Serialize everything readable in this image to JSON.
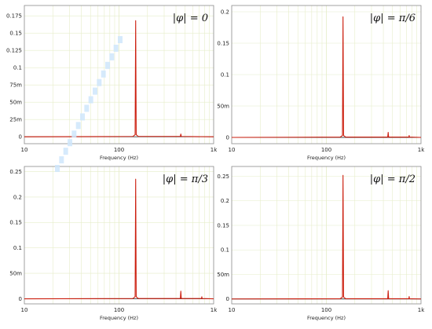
{
  "chart_data": [
    {
      "type": "line",
      "panel": "top-left",
      "annotation": "|φ| = 0",
      "xlabel": "Frequency (Hz)",
      "ylabel": "",
      "xscale": "log",
      "xlim": [
        10,
        1000
      ],
      "ylim": [
        -0.01,
        0.19
      ],
      "grid": true,
      "x_ticks": [
        {
          "value": 10,
          "label": "10"
        },
        {
          "value": 100,
          "label": "100"
        },
        {
          "value": 1000,
          "label": "1k"
        }
      ],
      "y_ticks": [
        {
          "value": 0,
          "label": "0"
        },
        {
          "value": 0.025,
          "label": "25m"
        },
        {
          "value": 0.05,
          "label": "50m"
        },
        {
          "value": 0.075,
          "label": "75m"
        },
        {
          "value": 0.1,
          "label": "0.1"
        },
        {
          "value": 0.125,
          "label": "0.125"
        },
        {
          "value": 0.15,
          "label": "0.15"
        },
        {
          "value": 0.175,
          "label": "0.175"
        }
      ],
      "series": [
        {
          "color": "#cc1f0f",
          "points": [
            {
              "x": 10,
              "y": 0.0
            },
            {
              "x": 140,
              "y": 0.0005
            },
            {
              "x": 148,
              "y": 0.003
            },
            {
              "x": 150,
              "y": 0.168
            },
            {
              "x": 152,
              "y": 0.003
            },
            {
              "x": 160,
              "y": 0.0005
            },
            {
              "x": 445,
              "y": 0.0005
            },
            {
              "x": 450,
              "y": 0.004
            },
            {
              "x": 455,
              "y": 0.0005
            },
            {
              "x": 1000,
              "y": 0.0
            }
          ]
        }
      ]
    },
    {
      "type": "line",
      "panel": "top-right",
      "annotation": "|φ| = π/6",
      "xlabel": "Frequency (Hz)",
      "ylabel": "",
      "xscale": "log",
      "xlim": [
        10,
        1000
      ],
      "ylim": [
        -0.01,
        0.21
      ],
      "grid": true,
      "x_ticks": [
        {
          "value": 10,
          "label": "10"
        },
        {
          "value": 100,
          "label": "100"
        },
        {
          "value": 1000,
          "label": "1k"
        }
      ],
      "y_ticks": [
        {
          "value": 0,
          "label": "0"
        },
        {
          "value": 0.05,
          "label": "50m"
        },
        {
          "value": 0.1,
          "label": "0.1"
        },
        {
          "value": 0.15,
          "label": "0.15"
        },
        {
          "value": 0.2,
          "label": "0.2"
        }
      ],
      "series": [
        {
          "color": "#cc1f0f",
          "points": [
            {
              "x": 10,
              "y": 0.0
            },
            {
              "x": 140,
              "y": 0.0005
            },
            {
              "x": 148,
              "y": 0.003
            },
            {
              "x": 150,
              "y": 0.192
            },
            {
              "x": 152,
              "y": 0.003
            },
            {
              "x": 160,
              "y": 0.0005
            },
            {
              "x": 445,
              "y": 0.0005
            },
            {
              "x": 450,
              "y": 0.008
            },
            {
              "x": 455,
              "y": 0.0005
            },
            {
              "x": 745,
              "y": 0.0005
            },
            {
              "x": 750,
              "y": 0.003
            },
            {
              "x": 755,
              "y": 0.0005
            },
            {
              "x": 1000,
              "y": 0.0
            }
          ]
        }
      ]
    },
    {
      "type": "line",
      "panel": "bottom-left",
      "annotation": "|φ| = π/3",
      "xlabel": "Frequency (Hz)",
      "ylabel": "",
      "xscale": "log",
      "xlim": [
        10,
        1000
      ],
      "ylim": [
        -0.01,
        0.26
      ],
      "grid": true,
      "x_ticks": [
        {
          "value": 10,
          "label": "10"
        },
        {
          "value": 100,
          "label": "100"
        },
        {
          "value": 1000,
          "label": "1k"
        }
      ],
      "y_ticks": [
        {
          "value": 0,
          "label": "0"
        },
        {
          "value": 0.05,
          "label": "50m"
        },
        {
          "value": 0.1,
          "label": "0.1"
        },
        {
          "value": 0.15,
          "label": "0.15"
        },
        {
          "value": 0.2,
          "label": "0.2"
        },
        {
          "value": 0.25,
          "label": "0.25"
        }
      ],
      "series": [
        {
          "color": "#cc1f0f",
          "points": [
            {
              "x": 10,
              "y": 0.0
            },
            {
              "x": 140,
              "y": 0.0005
            },
            {
              "x": 148,
              "y": 0.004
            },
            {
              "x": 150,
              "y": 0.235
            },
            {
              "x": 152,
              "y": 0.004
            },
            {
              "x": 160,
              "y": 0.0005
            },
            {
              "x": 445,
              "y": 0.0005
            },
            {
              "x": 450,
              "y": 0.015
            },
            {
              "x": 455,
              "y": 0.0005
            },
            {
              "x": 745,
              "y": 0.0005
            },
            {
              "x": 750,
              "y": 0.004
            },
            {
              "x": 755,
              "y": 0.0005
            },
            {
              "x": 1000,
              "y": 0.0
            }
          ]
        }
      ]
    },
    {
      "type": "line",
      "panel": "bottom-right",
      "annotation": "|φ| = π/2",
      "xlabel": "Frequency (Hz)",
      "ylabel": "",
      "xscale": "log",
      "xlim": [
        10,
        1000
      ],
      "ylim": [
        -0.01,
        0.27
      ],
      "grid": true,
      "x_ticks": [
        {
          "value": 10,
          "label": "10"
        },
        {
          "value": 100,
          "label": "100"
        },
        {
          "value": 1000,
          "label": "1k"
        }
      ],
      "y_ticks": [
        {
          "value": 0,
          "label": "0"
        },
        {
          "value": 0.05,
          "label": "50m"
        },
        {
          "value": 0.1,
          "label": "0.1"
        },
        {
          "value": 0.15,
          "label": "0.15"
        },
        {
          "value": 0.2,
          "label": "0.2"
        },
        {
          "value": 0.25,
          "label": "0.25"
        }
      ],
      "series": [
        {
          "color": "#cc1f0f",
          "points": [
            {
              "x": 10,
              "y": 0.0
            },
            {
              "x": 140,
              "y": 0.0005
            },
            {
              "x": 148,
              "y": 0.004
            },
            {
              "x": 150,
              "y": 0.252
            },
            {
              "x": 152,
              "y": 0.004
            },
            {
              "x": 160,
              "y": 0.0005
            },
            {
              "x": 445,
              "y": 0.0005
            },
            {
              "x": 450,
              "y": 0.017
            },
            {
              "x": 455,
              "y": 0.0005
            },
            {
              "x": 745,
              "y": 0.0005
            },
            {
              "x": 750,
              "y": 0.005
            },
            {
              "x": 755,
              "y": 0.0005
            },
            {
              "x": 1000,
              "y": 0.0
            }
          ]
        }
      ]
    }
  ]
}
